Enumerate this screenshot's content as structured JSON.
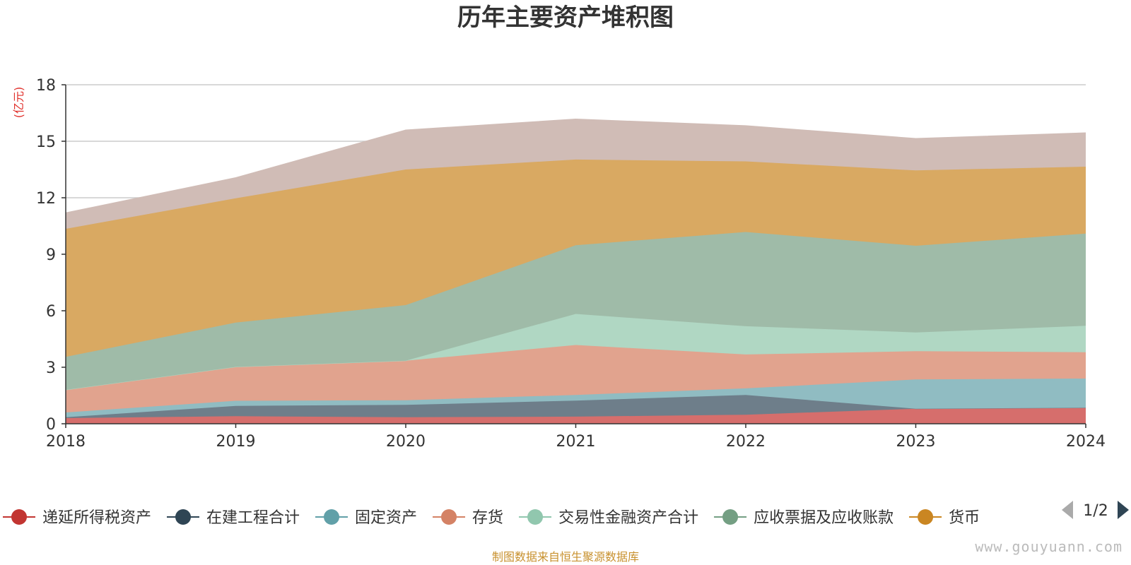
{
  "chart_data": {
    "type": "area",
    "stacked": true,
    "title": "历年主要资产堆积图",
    "ylabel": "(亿元)",
    "xlabel": "",
    "x": [
      "2018",
      "2019",
      "2020",
      "2021",
      "2022",
      "2023",
      "2024"
    ],
    "ylim": [
      0,
      18
    ],
    "yticks": [
      0,
      3,
      6,
      9,
      12,
      15,
      18
    ],
    "grid": true,
    "series": [
      {
        "name": "递延所得税资产",
        "color": "#c23531",
        "area_color": "#d66e6c",
        "values": [
          0.3,
          0.4,
          0.35,
          0.38,
          0.48,
          0.8,
          0.85
        ]
      },
      {
        "name": "在建工程合计",
        "color": "#2f4554",
        "area_color": "#6e7e8a",
        "values": [
          0.05,
          0.55,
          0.65,
          0.85,
          1.05,
          0.0,
          0.0
        ]
      },
      {
        "name": "固定资产",
        "color": "#61a0a8",
        "area_color": "#90bcc2",
        "values": [
          0.25,
          0.27,
          0.25,
          0.3,
          0.35,
          1.55,
          1.55
        ]
      },
      {
        "name": "存货",
        "color": "#d48265",
        "area_color": "#e1a38e",
        "values": [
          1.2,
          1.8,
          2.1,
          2.65,
          1.8,
          1.5,
          1.4
        ]
      },
      {
        "name": "交易性金融资产合计",
        "color": "#91c7ae",
        "area_color": "#b0d7c3",
        "values": [
          0.0,
          0.0,
          0.0,
          1.65,
          1.5,
          1.0,
          1.4
        ]
      },
      {
        "name": "应收票据及应收账款",
        "color": "#749f83",
        "area_color": "#9fbba8",
        "values": [
          1.75,
          2.35,
          2.95,
          3.65,
          5.0,
          4.6,
          4.9
        ]
      },
      {
        "name": "货币",
        "color": "#ca8622",
        "area_color": "#d9a962",
        "values": [
          6.8,
          6.6,
          7.2,
          4.55,
          3.75,
          4.0,
          3.55
        ]
      },
      {
        "name": "",
        "color": "#bda29a",
        "area_color": "#d0bcb6",
        "values": [
          0.85,
          1.1,
          2.1,
          2.15,
          1.9,
          1.7,
          1.8
        ]
      }
    ],
    "legend": {
      "placement": "bottom",
      "page": "1/2"
    }
  },
  "source_note": "制图数据来自恒生聚源数据库",
  "watermark": "www.gouyuann.com",
  "colors": {
    "axis": "#333333",
    "grid": "#cccccc",
    "unit_label": "#e0302b",
    "source_note": "#c8912e",
    "pager_prev_disabled": "#aaaaaa",
    "pager_next": "#2f4554"
  }
}
